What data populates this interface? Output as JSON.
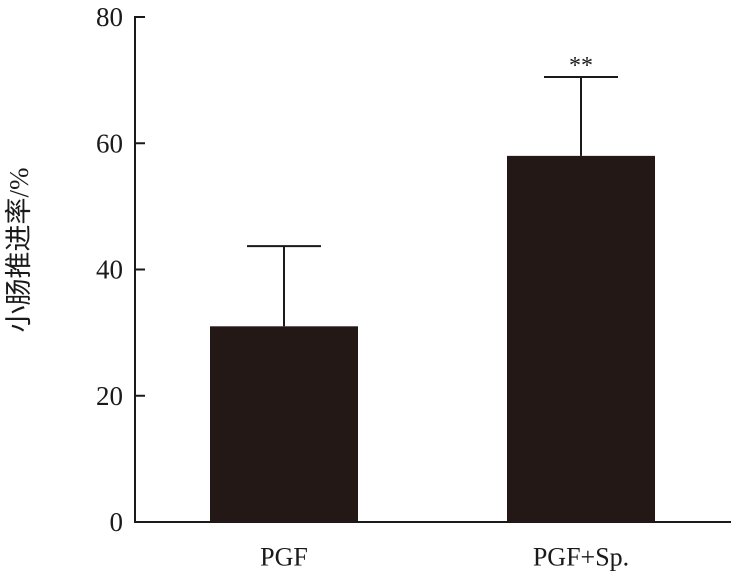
{
  "chart_data": {
    "type": "bar",
    "categories": [
      "PGF",
      "PGF+Sp."
    ],
    "values": [
      31,
      58
    ],
    "error_bars": [
      12.7,
      12.5
    ],
    "significance": [
      "",
      "**"
    ],
    "ylabel": "小肠推进率/%",
    "xlabel": "",
    "title": "",
    "ylim": [
      0,
      80
    ],
    "yticks": [
      0,
      20,
      40,
      60,
      80
    ],
    "grid": false,
    "colors": {
      "bar": "#231815",
      "axis": "#1a1a1a"
    }
  }
}
